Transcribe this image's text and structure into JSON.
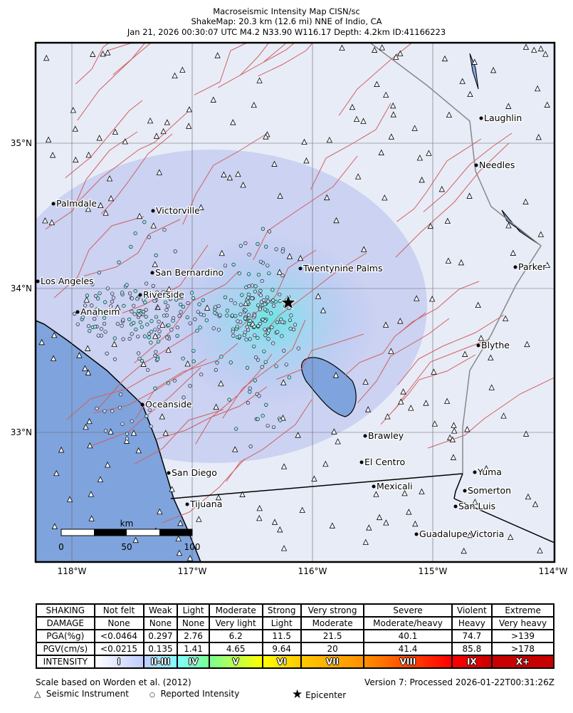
{
  "header": {
    "title": "Macroseismic Intensity Map CISN/sc",
    "subtitle": "ShakeMap: 20.3 km (12.6 mi) NNE of Indio, CA",
    "event": "Jan 21, 2026 00:30:07 UTC M4.2 N33.90 W116.17 Depth: 4.2km ID:41166223"
  },
  "axes": {
    "lon_labels": [
      "118°W",
      "117°W",
      "116°W",
      "115°W",
      "114°W"
    ],
    "lat_labels": [
      "35°N",
      "34°N",
      "33°N"
    ]
  },
  "cities": [
    "Laughlin",
    "Needles",
    "Palmdale",
    "Victorville",
    "Parker",
    "Twentynine Palms",
    "San Bernardino",
    "Los Angeles",
    "Riverside",
    "Anaheim",
    "Blythe",
    "Oceanside",
    "Brawley",
    "El Centro",
    "Yuma",
    "San Diego",
    "Mexicali",
    "Somerton",
    "Tijuana",
    "San Luis",
    "Guadalupe Victoria"
  ],
  "scale_bar": {
    "unit": "km",
    "ticks": [
      "0",
      "50",
      "100"
    ]
  },
  "legend": {
    "rows": [
      {
        "label": "SHAKING",
        "values": [
          "Not felt",
          "Weak",
          "Light",
          "Moderate",
          "Strong",
          "Very strong",
          "Severe",
          "Violent",
          "Extreme"
        ]
      },
      {
        "label": "DAMAGE",
        "values": [
          "None",
          "None",
          "None",
          "Very light",
          "Light",
          "Moderate",
          "Moderate/heavy",
          "Heavy",
          "Very heavy"
        ]
      },
      {
        "label": "PGA(%g)",
        "values": [
          "<0.0464",
          "0.297",
          "2.76",
          "6.2",
          "11.5",
          "21.5",
          "40.1",
          "74.7",
          ">139"
        ]
      },
      {
        "label": "PGV(cm/s)",
        "values": [
          "<0.0215",
          "0.135",
          "1.41",
          "4.65",
          "9.64",
          "20",
          "41.4",
          "85.8",
          ">178"
        ]
      }
    ],
    "intensity": {
      "label": "INTENSITY",
      "values": [
        "I",
        "II-III",
        "IV",
        "V",
        "VI",
        "VII",
        "VIII",
        "IX",
        "X+"
      ],
      "colors": [
        "#ffffff",
        "#bfccff",
        "#80ffff",
        "#7aff93",
        "#ffff00",
        "#ffc800",
        "#ff9100",
        "#ff0000",
        "#c80000"
      ]
    }
  },
  "footer": {
    "scale_note": "Scale based on Worden et al. (2012)",
    "version": "Version 7: Processed 2026-01-22T00:31:26Z",
    "key_instrument": "Seismic Instrument",
    "key_reported": "Reported Intensity",
    "key_epicenter": "Epicenter"
  },
  "colors": {
    "ocean": "#7fa3dc",
    "land": "#e6eaf6",
    "fault": "#d06060",
    "epicenter_zone": "#5fe8e0"
  }
}
